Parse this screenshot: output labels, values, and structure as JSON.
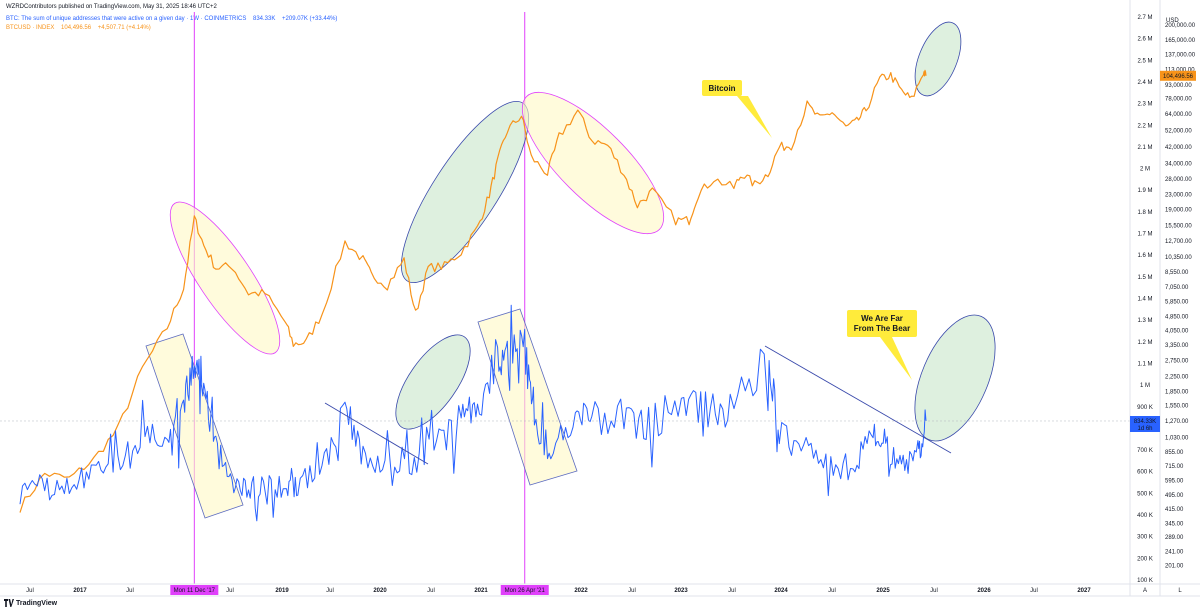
{
  "header": {
    "publisher": "WZRDContributors published on TradingView.com, May 31, 2025 18:46 UTC+2",
    "series1_title": "BTC: The sum of unique addresses that were active on a given day · 1W · COINMETRICS",
    "series1_value": "834.33K",
    "series1_change": "+209.07K (+33.44%)",
    "series2_title": "BTCUSD · INDEX",
    "series2_value": "104,496.56",
    "series2_change": "+4,507.71 (+4.14%)"
  },
  "footer": {
    "brand": "TradingView"
  },
  "colors": {
    "price": "#f7931a",
    "addresses": "#2962ff",
    "vline": "#e040fb",
    "ellipse_yellow_fill": "#fff9c4",
    "ellipse_green_fill": "#c8e6c9",
    "callout_bg": "#ffeb3b",
    "time_axis_badge": "#e040fb"
  },
  "chart_data": {
    "type": "line",
    "x_axis": {
      "ticks": [
        "Jul",
        "2017",
        "Jul",
        "Mon 11 Dec '17",
        "Jul",
        "2019",
        "Jul",
        "2020",
        "Jul",
        "2021",
        "Mon 26 Apr '21",
        "2022",
        "Jul",
        "2023",
        "Jul",
        "2024",
        "Jul",
        "2025",
        "Jul",
        "2026",
        "Jul",
        "2027"
      ],
      "range": [
        "2016-03",
        "2027-06"
      ]
    },
    "left_scale": {
      "unit": "",
      "labels": [
        "2.7 M",
        "2.6 M",
        "2.5 M",
        "2.4 M",
        "2.3 M",
        "2.2 M",
        "2.1 M",
        "2 M",
        "1.9 M",
        "1.8 M",
        "1.7 M",
        "1.6 M",
        "1.5 M",
        "1.4 M",
        "1.3 M",
        "1.2 M",
        "1.1 M",
        "1 M",
        "900 K",
        "800 K",
        "700 K",
        "600 K",
        "500 K",
        "400 K",
        "300 K",
        "200 K",
        "100 K"
      ]
    },
    "right_scale": {
      "unit": "USD",
      "type": "log",
      "labels": [
        "200,000.00",
        "165,000.00",
        "137,000.00",
        "113,000.00",
        "93,000.00",
        "78,000.00",
        "64,000.00",
        "52,000.00",
        "42,000.00",
        "34,000.00",
        "28,000.00",
        "23,000.00",
        "19,000.00",
        "15,500.00",
        "12,700.00",
        "10,350.00",
        "8,550.00",
        "7,050.00",
        "5,850.00",
        "4,850.00",
        "4,050.00",
        "3,350.00",
        "2,750.00",
        "2,250.00",
        "1,850.00",
        "1,550.00",
        "1,270.00",
        "1,030.00",
        "855.00",
        "715.00",
        "595.00",
        "495.00",
        "415.00",
        "345.00",
        "289.00",
        "241.00",
        "201.00"
      ],
      "price_badge": "104,496.56",
      "addr_badge": "834.33K",
      "addr_badge_sub": "1d 6h"
    },
    "series": [
      {
        "name": "BTCUSD",
        "scale": "right",
        "points": [
          [
            "2016-03-01",
            420
          ],
          [
            "2016-06-01",
            650
          ],
          [
            "2016-09-01",
            610
          ],
          [
            "2016-12-01",
            780
          ],
          [
            "2017-03-01",
            1150
          ],
          [
            "2017-06-01",
            2500
          ],
          [
            "2017-09-01",
            4200
          ],
          [
            "2017-11-01",
            7000
          ],
          [
            "2017-12-11",
            17000
          ],
          [
            "2018-01-15",
            12000
          ],
          [
            "2018-03-01",
            9000
          ],
          [
            "2018-05-01",
            9200
          ],
          [
            "2018-07-01",
            6500
          ],
          [
            "2018-09-01",
            6500
          ],
          [
            "2018-11-15",
            4500
          ],
          [
            "2018-12-15",
            3400
          ],
          [
            "2019-02-01",
            3500
          ],
          [
            "2019-04-01",
            5000
          ],
          [
            "2019-06-26",
            12500
          ],
          [
            "2019-09-01",
            10000
          ],
          [
            "2019-10-01",
            8300
          ],
          [
            "2019-12-01",
            7200
          ],
          [
            "2020-02-01",
            10000
          ],
          [
            "2020-03-15",
            5000
          ],
          [
            "2020-05-01",
            9000
          ],
          [
            "2020-07-01",
            9200
          ],
          [
            "2020-09-01",
            11000
          ],
          [
            "2020-11-01",
            15000
          ],
          [
            "2020-12-15",
            23000
          ],
          [
            "2021-01-15",
            35000
          ],
          [
            "2021-02-20",
            52000
          ],
          [
            "2021-04-14",
            63000
          ],
          [
            "2021-05-20",
            37000
          ],
          [
            "2021-07-20",
            30000
          ],
          [
            "2021-09-01",
            48000
          ],
          [
            "2021-11-10",
            67000
          ],
          [
            "2022-01-01",
            46000
          ],
          [
            "2022-03-01",
            43000
          ],
          [
            "2022-05-01",
            30000
          ],
          [
            "2022-06-20",
            20000
          ],
          [
            "2022-08-15",
            24000
          ],
          [
            "2022-11-10",
            16500
          ],
          [
            "2022-12-30",
            16500
          ],
          [
            "2023-02-01",
            23000
          ],
          [
            "2023-04-01",
            28000
          ],
          [
            "2023-06-15",
            25000
          ],
          [
            "2023-07-15",
            30000
          ],
          [
            "2023-09-01",
            26000
          ],
          [
            "2023-10-20",
            30000
          ],
          [
            "2023-12-01",
            42000
          ],
          [
            "2024-01-15",
            43000
          ],
          [
            "2024-03-14",
            72000
          ],
          [
            "2024-05-01",
            60000
          ],
          [
            "2024-06-15",
            66000
          ],
          [
            "2024-08-05",
            54000
          ],
          [
            "2024-09-15",
            58000
          ],
          [
            "2024-10-20",
            68000
          ],
          [
            "2024-12-10",
            100000
          ],
          [
            "2025-01-20",
            105000
          ],
          [
            "2025-03-01",
            86000
          ],
          [
            "2025-04-08",
            77000
          ],
          [
            "2025-05-22",
            110000
          ],
          [
            "2025-05-31",
            104496.56
          ]
        ]
      },
      {
        "name": "BTC Active Addresses",
        "scale": "left",
        "points": [
          [
            "2016-03-01",
            500000
          ],
          [
            "2016-06-01",
            520000
          ],
          [
            "2016-09-01",
            530000
          ],
          [
            "2016-12-01",
            600000
          ],
          [
            "2017-03-01",
            640000
          ],
          [
            "2017-06-01",
            720000
          ],
          [
            "2017-09-01",
            800000
          ],
          [
            "2017-11-01",
            900000
          ],
          [
            "2017-12-11",
            1150000
          ],
          [
            "2018-01-15",
            1000000
          ],
          [
            "2018-03-01",
            700000
          ],
          [
            "2018-05-01",
            560000
          ],
          [
            "2018-07-01",
            520000
          ],
          [
            "2018-09-01",
            540000
          ],
          [
            "2018-11-15",
            520000
          ],
          [
            "2019-01-01",
            540000
          ],
          [
            "2019-04-01",
            620000
          ],
          [
            "2019-06-26",
            880000
          ],
          [
            "2019-09-01",
            680000
          ],
          [
            "2019-12-01",
            640000
          ],
          [
            "2020-03-01",
            650000
          ],
          [
            "2020-06-01",
            720000
          ],
          [
            "2020-09-01",
            850000
          ],
          [
            "2020-11-01",
            900000
          ],
          [
            "2021-01-15",
            1150000
          ],
          [
            "2021-03-01",
            1080000
          ],
          [
            "2021-04-26",
            1200000
          ],
          [
            "2021-06-01",
            780000
          ],
          [
            "2021-08-01",
            720000
          ],
          [
            "2021-11-01",
            880000
          ],
          [
            "2022-01-01",
            840000
          ],
          [
            "2022-05-01",
            850000
          ],
          [
            "2022-08-01",
            820000
          ],
          [
            "2022-12-01",
            900000
          ],
          [
            "2023-03-01",
            880000
          ],
          [
            "2023-06-01",
            880000
          ],
          [
            "2023-10-20",
            1110000
          ],
          [
            "2023-12-01",
            780000
          ],
          [
            "2024-03-01",
            700000
          ],
          [
            "2024-06-01",
            640000
          ],
          [
            "2024-09-01",
            620000
          ],
          [
            "2024-11-15",
            800000
          ],
          [
            "2025-01-01",
            720000
          ],
          [
            "2025-03-01",
            620000
          ],
          [
            "2025-05-01",
            680000
          ],
          [
            "2025-05-31",
            834330
          ]
        ]
      }
    ],
    "vertical_markers": [
      {
        "date": "2017-12-11",
        "label": "Mon 11 Dec '17"
      },
      {
        "date": "2021-04-26",
        "label": "Mon 26 Apr '21"
      }
    ],
    "annotations": [
      {
        "kind": "callout",
        "text": [
          "Bitcoin"
        ]
      },
      {
        "kind": "callout",
        "text": [
          "We Are Far",
          "From The Bear"
        ]
      }
    ],
    "grid": false,
    "legend": "top-left"
  }
}
